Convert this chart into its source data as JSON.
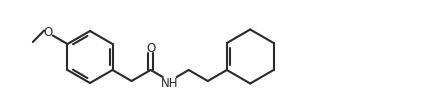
{
  "bg_color": "#ffffff",
  "line_color": "#2a2a2a",
  "line_width": 1.5,
  "text_color": "#2a2a2a",
  "font_size": 8.5,
  "label_O_carbonyl": "O",
  "label_NH": "NH",
  "label_O_methoxy": "O",
  "figsize": [
    4.23,
    1.09
  ],
  "dpi": 100
}
